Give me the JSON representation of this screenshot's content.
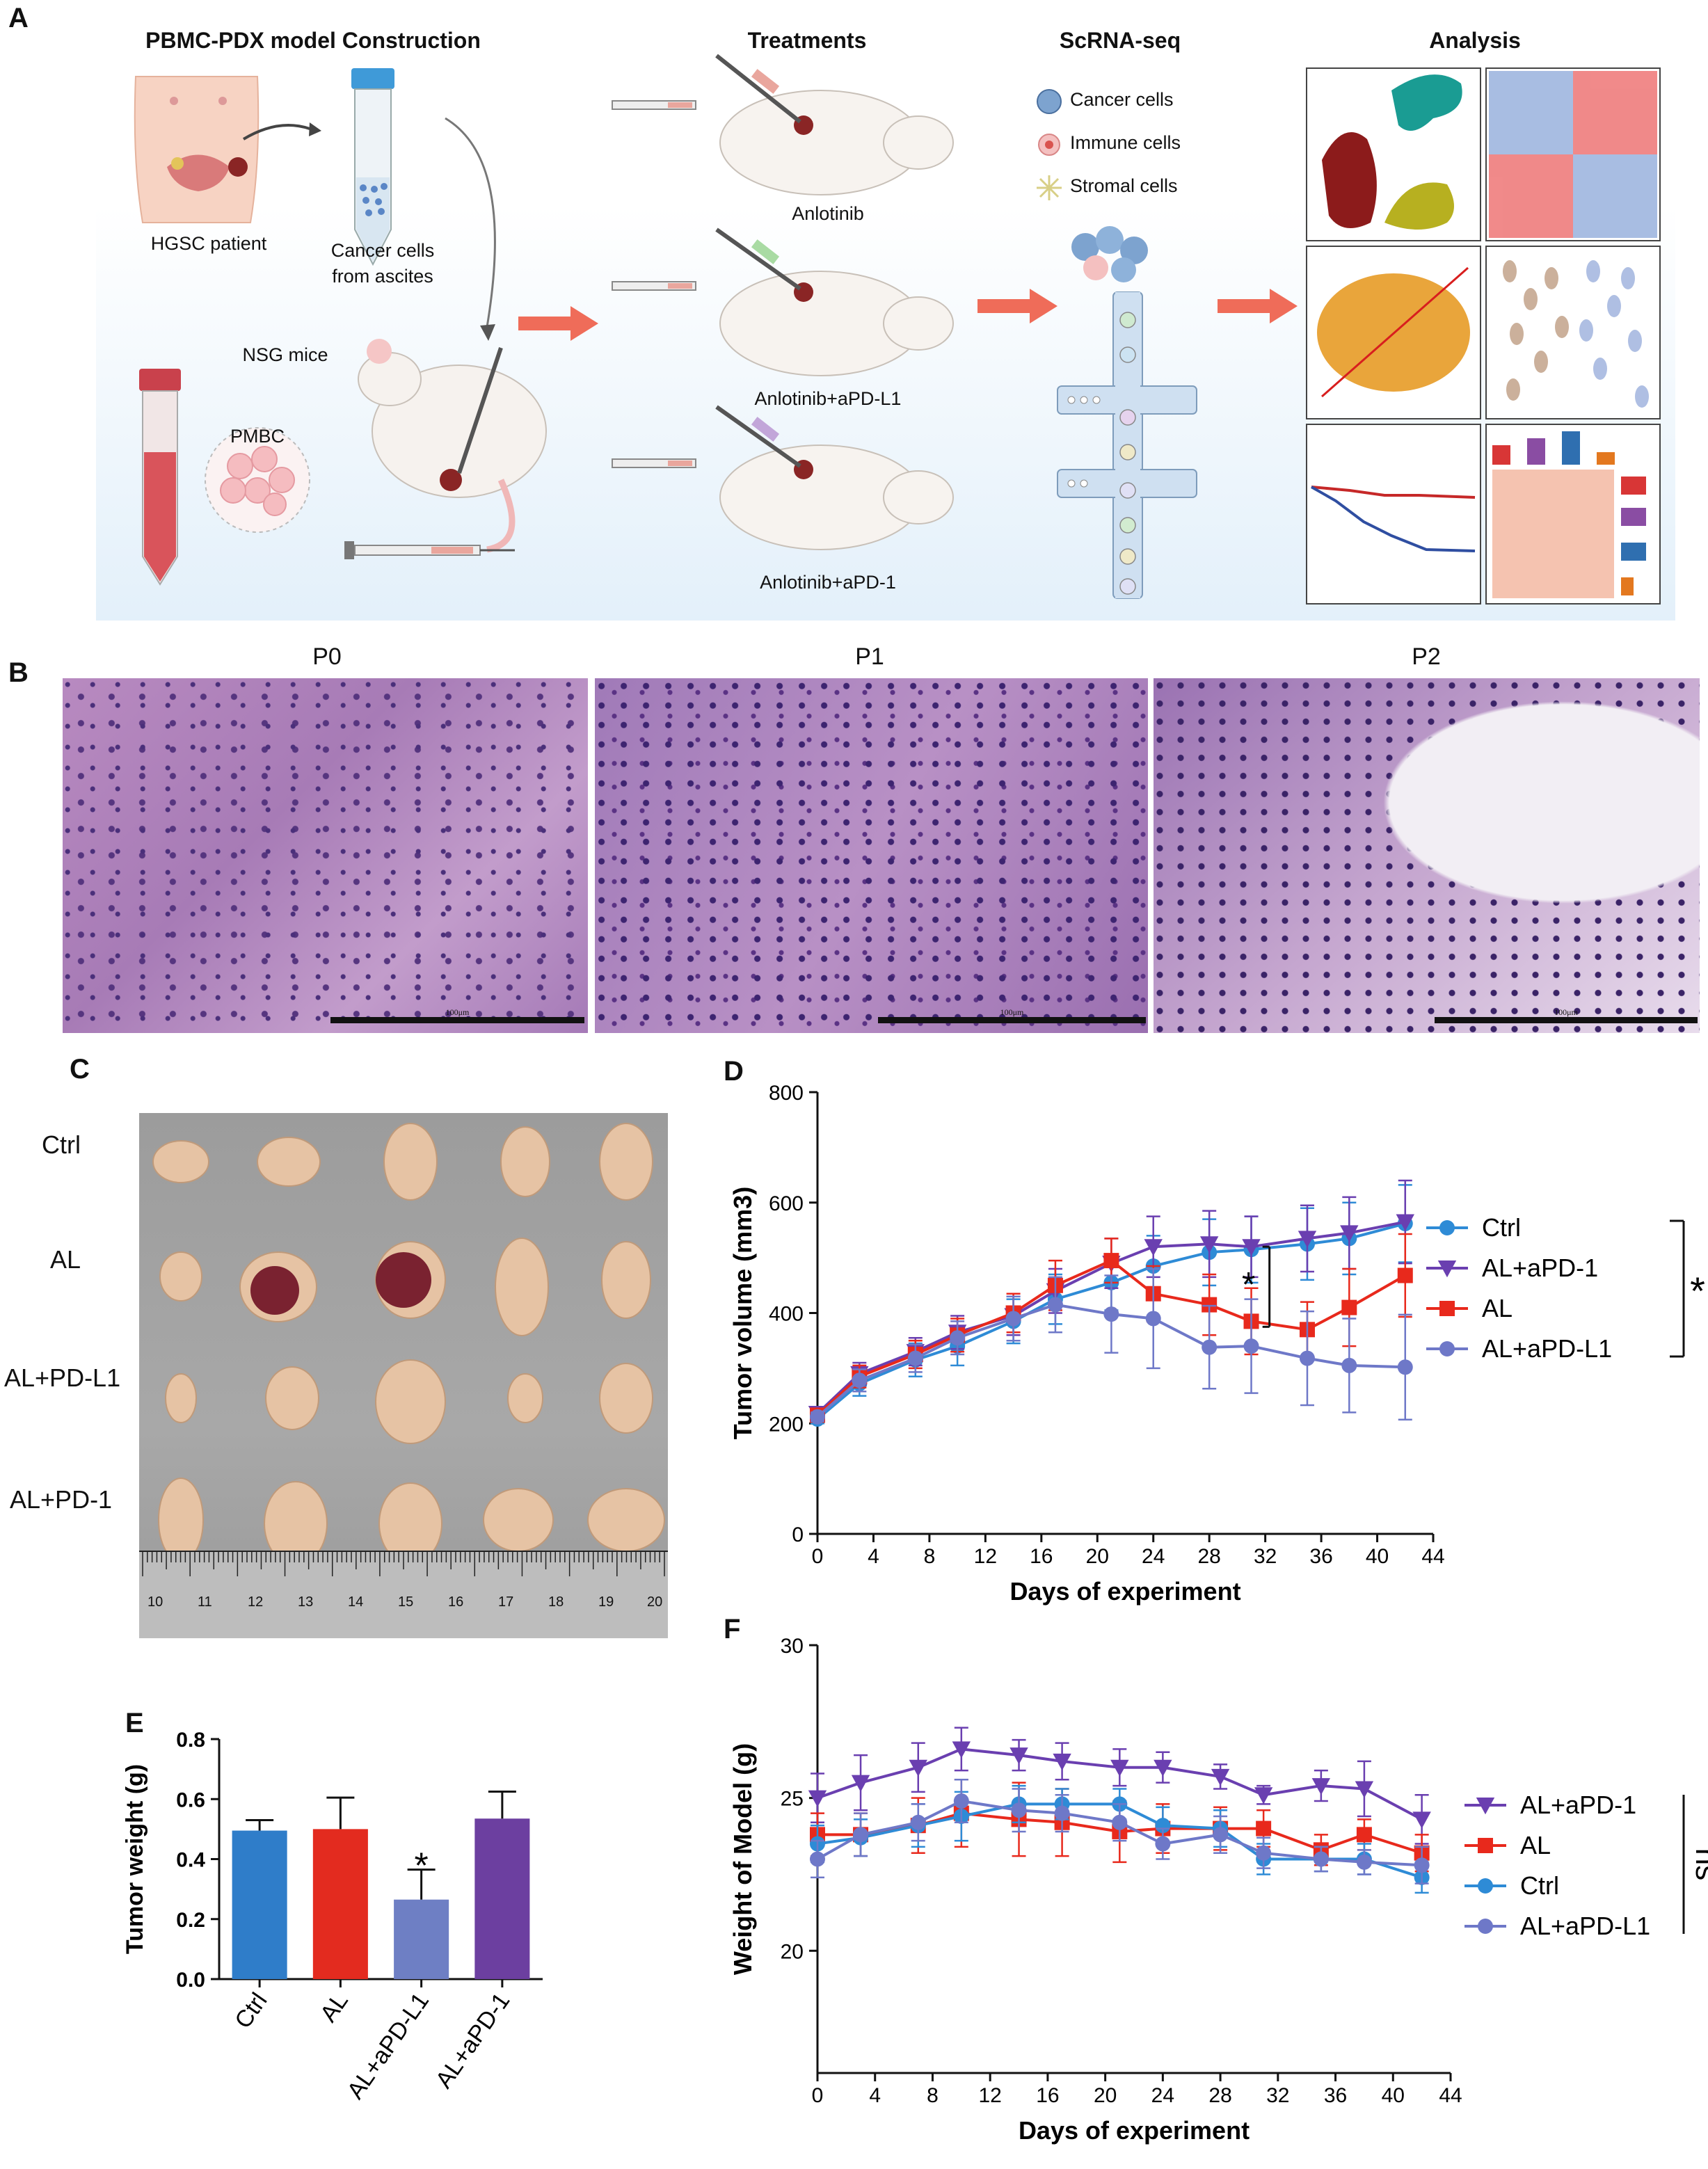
{
  "panel_a": {
    "letter": "A",
    "headings": [
      "PBMC-PDX model Construction",
      "Treatments",
      "ScRNA-seq",
      "Analysis"
    ],
    "labels": {
      "patient": "HGSC patient",
      "cancer_cells_line1": "Cancer cells",
      "cancer_cells_line2": "from ascites",
      "mice": "NSG mice",
      "pmbc": "PMBC",
      "treat1": "Anlotinib",
      "treat2": "Anlotinib+aPD-L1",
      "treat3": "Anlotinib+aPD-1",
      "legend_cancer": "Cancer cells",
      "legend_immune": "Immune cells",
      "legend_stromal": "Stromal cells"
    }
  },
  "panel_b": {
    "letter": "B",
    "images": [
      {
        "title": "P0",
        "scale": "100μm"
      },
      {
        "title": "P1",
        "scale": "100μm"
      },
      {
        "title": "P2",
        "scale": "100μm"
      }
    ]
  },
  "panel_c": {
    "letter": "C",
    "rows": [
      "Ctrl",
      "AL",
      "AL+PD-L1",
      "AL+PD-1"
    ],
    "ruler_numbers": [
      "10",
      "11",
      "12",
      "13",
      "14",
      "15",
      "16",
      "17",
      "18",
      "19",
      "20"
    ]
  },
  "panel_d": {
    "letter": "D",
    "sig_mark": "*",
    "sig_mark_bracket": "*"
  },
  "panel_e": {
    "letter": "E",
    "sig_mark": "*"
  },
  "panel_f": {
    "letter": "F",
    "sig_mark": "ns"
  },
  "colors": {
    "ctrl": "#2E8BD6",
    "al": "#E8291C",
    "al_apd1": "#6A3FB0",
    "al_apdl1": "#6E78C8",
    "bar_ctrl": "#2F7DC9",
    "bar_al": "#E32B1F",
    "bar_al_apdl1": "#6E7FC4",
    "bar_al_apd1": "#6C3FA0"
  },
  "chart_data": [
    {
      "id": "D",
      "type": "line",
      "xlabel": "Days of experiment",
      "ylabel": "Tumor volume (mm3)",
      "xlim": [
        0,
        44
      ],
      "ylim": [
        0,
        800
      ],
      "xticks": [
        "0",
        "4",
        "8",
        "12",
        "16",
        "20",
        "24",
        "28",
        "32",
        "36",
        "40",
        "44"
      ],
      "yticks": [
        "0",
        "200",
        "400",
        "600",
        "800"
      ],
      "x": [
        0,
        3,
        7,
        10,
        14,
        17,
        21,
        24,
        28,
        31,
        35,
        38,
        42
      ],
      "series": [
        {
          "name": "Ctrl",
          "color": "#2E8BD6",
          "marker": "circle",
          "values": [
            208,
            272,
            315,
            340,
            385,
            425,
            455,
            485,
            510,
            515,
            525,
            535,
            562
          ],
          "errors": [
            8,
            22,
            30,
            35,
            40,
            45,
            50,
            55,
            60,
            60,
            65,
            65,
            70
          ]
        },
        {
          "name": "AL+aPD-1",
          "color": "#6A3FB0",
          "marker": "triangle-down",
          "values": [
            218,
            290,
            330,
            365,
            395,
            440,
            490,
            520,
            525,
            520,
            535,
            545,
            565
          ],
          "errors": [
            8,
            20,
            25,
            30,
            35,
            40,
            45,
            55,
            60,
            55,
            60,
            65,
            75
          ]
        },
        {
          "name": "AL",
          "color": "#E8291C",
          "marker": "square",
          "values": [
            215,
            285,
            325,
            360,
            400,
            450,
            495,
            435,
            415,
            385,
            370,
            410,
            468
          ],
          "errors": [
            8,
            20,
            25,
            30,
            35,
            45,
            40,
            50,
            55,
            60,
            50,
            70,
            75
          ]
        },
        {
          "name": "AL+aPD-L1",
          "color": "#6E78C8",
          "marker": "circle",
          "values": [
            212,
            278,
            318,
            355,
            390,
            415,
            398,
            390,
            338,
            340,
            318,
            305,
            302
          ],
          "errors": [
            8,
            20,
            25,
            30,
            40,
            50,
            70,
            90,
            75,
            85,
            85,
            85,
            95
          ]
        }
      ],
      "legend_order": [
        "Ctrl",
        "AL+aPD-1",
        "AL",
        "AL+aPD-L1"
      ],
      "legend": "right",
      "grid": false
    },
    {
      "id": "E",
      "type": "bar",
      "ylabel": "Tumor weight (g)",
      "ylim": [
        0.0,
        0.8
      ],
      "yticks": [
        "0.0",
        "0.2",
        "0.4",
        "0.6",
        "0.8"
      ],
      "categories": [
        "Ctrl",
        "AL",
        "AL+aPD-L1",
        "AL+aPD-1"
      ],
      "values": [
        0.495,
        0.5,
        0.265,
        0.535
      ],
      "errors": [
        0.035,
        0.105,
        0.1,
        0.09
      ],
      "colors": [
        "#2F7DC9",
        "#E32B1F",
        "#6E7FC4",
        "#6C3FA0"
      ],
      "grid": false
    },
    {
      "id": "F",
      "type": "line",
      "xlabel": "Days of experiment",
      "ylabel": "Weight of Model (g)",
      "xlim": [
        0,
        44
      ],
      "ylim": [
        16,
        30
      ],
      "xticks": [
        "0",
        "4",
        "8",
        "12",
        "16",
        "20",
        "24",
        "28",
        "32",
        "36",
        "40",
        "44"
      ],
      "yticks": [
        "20",
        "25",
        "30"
      ],
      "x": [
        0,
        3,
        7,
        10,
        14,
        17,
        21,
        24,
        28,
        31,
        35,
        38,
        42
      ],
      "series": [
        {
          "name": "AL+aPD-1",
          "color": "#6A3FB0",
          "marker": "triangle-down",
          "values": [
            25.0,
            25.5,
            26.0,
            26.6,
            26.4,
            26.2,
            26.0,
            26.0,
            25.7,
            25.1,
            25.4,
            25.3,
            24.3
          ],
          "errors": [
            0.8,
            0.9,
            0.8,
            0.7,
            0.5,
            0.6,
            0.6,
            0.5,
            0.4,
            0.3,
            0.5,
            0.9,
            0.8
          ]
        },
        {
          "name": "AL",
          "color": "#E8291C",
          "marker": "square",
          "values": [
            23.8,
            23.8,
            24.1,
            24.5,
            24.3,
            24.2,
            23.9,
            24.0,
            24.0,
            24.0,
            23.3,
            23.8,
            23.2
          ],
          "errors": [
            0.7,
            0.7,
            0.9,
            1.1,
            1.2,
            1.1,
            1.0,
            0.8,
            0.7,
            0.6,
            0.5,
            0.5,
            0.6
          ]
        },
        {
          "name": "Ctrl",
          "color": "#2E8BD6",
          "marker": "circle",
          "values": [
            23.5,
            23.7,
            24.1,
            24.4,
            24.8,
            24.8,
            24.8,
            24.1,
            24.0,
            23.0,
            23.0,
            23.0,
            22.4
          ],
          "errors": [
            0.6,
            0.6,
            0.7,
            0.8,
            0.6,
            0.5,
            0.5,
            0.6,
            0.6,
            0.5,
            0.4,
            0.5,
            0.5
          ]
        },
        {
          "name": "AL+aPD-L1",
          "color": "#6E78C8",
          "marker": "circle",
          "values": [
            23.0,
            23.8,
            24.2,
            24.9,
            24.6,
            24.5,
            24.2,
            23.5,
            23.8,
            23.2,
            23.0,
            22.9,
            22.8
          ],
          "errors": [
            0.6,
            0.7,
            0.6,
            0.7,
            0.7,
            0.6,
            0.6,
            0.5,
            0.6,
            0.5,
            0.4,
            0.4,
            0.6
          ]
        }
      ],
      "legend_order": [
        "AL+aPD-1",
        "AL",
        "Ctrl",
        "AL+aPD-L1"
      ],
      "legend": "right",
      "grid": false
    }
  ]
}
